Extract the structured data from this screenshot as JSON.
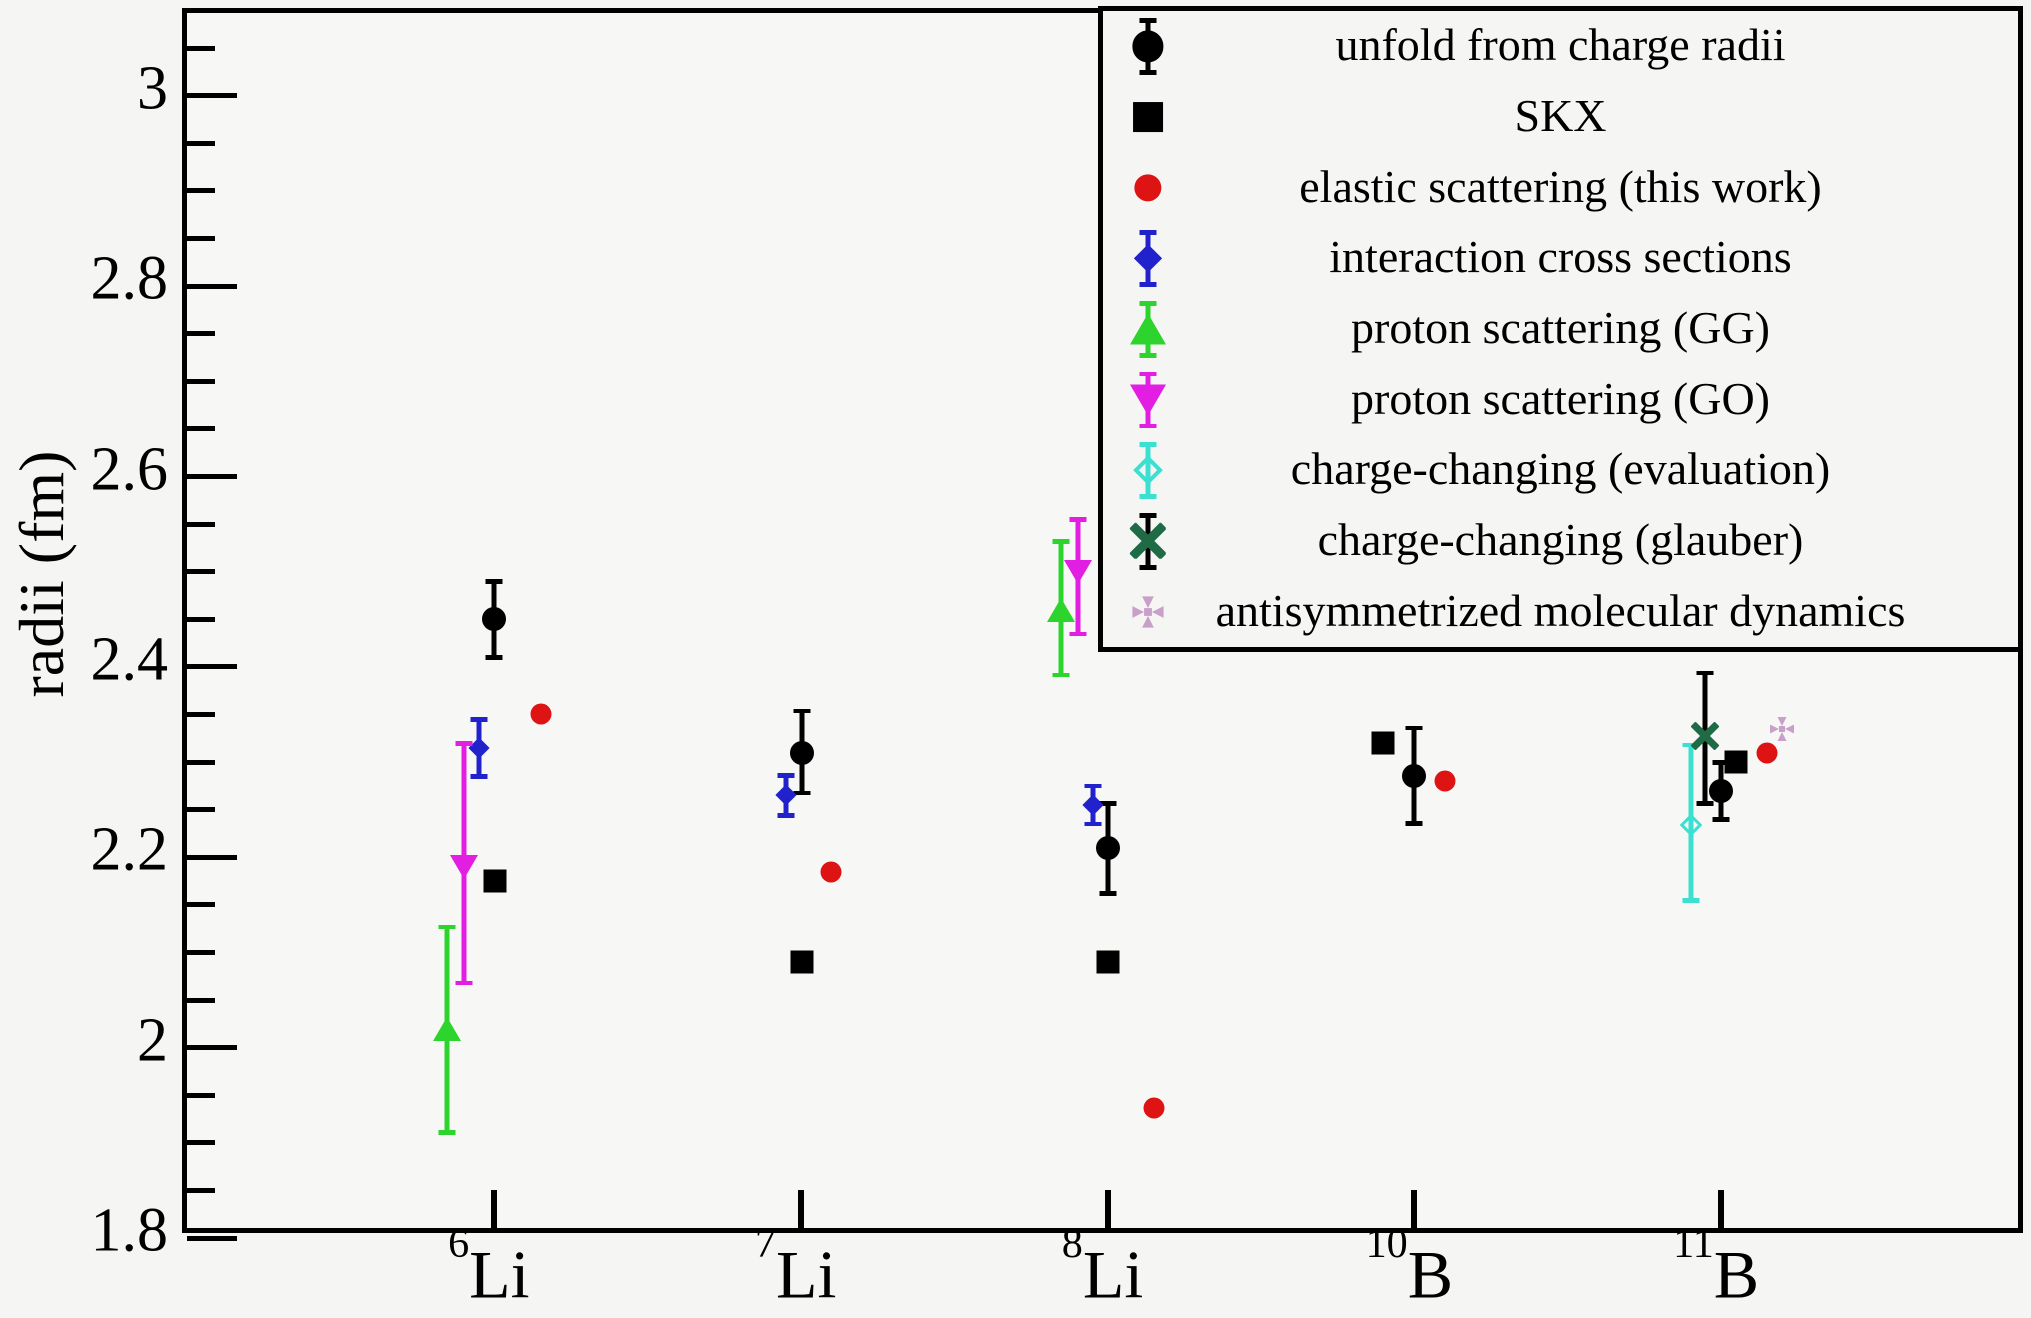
{
  "chart_data": {
    "type": "scatter",
    "title": "",
    "xlabel": "",
    "ylabel": "radii (fm)",
    "ylim": [
      1.8,
      3.087
    ],
    "grid": false,
    "legend_position": "top-right",
    "background": "#f5f5f4",
    "frame_color": "#000000",
    "yticks": [
      {
        "v": 3.0,
        "label": "3"
      },
      {
        "v": 2.8,
        "label": "2.8"
      },
      {
        "v": 2.6,
        "label": "2.6"
      },
      {
        "v": 2.4,
        "label": "2.4"
      },
      {
        "v": 2.2,
        "label": "2.2"
      },
      {
        "v": 2.0,
        "label": "2"
      },
      {
        "v": 1.8,
        "label": "1.8"
      }
    ],
    "minor_tick_step": 0.05,
    "categories": [
      {
        "mass": "6",
        "element": "Li"
      },
      {
        "mass": "7",
        "element": "Li"
      },
      {
        "mass": "8",
        "element": "Li"
      },
      {
        "mass": "10",
        "element": "B"
      },
      {
        "mass": "11",
        "element": "B"
      }
    ],
    "series": [
      {
        "name": "unfold from charge radii",
        "marker": "circle",
        "color": "#000000",
        "points": [
          {
            "cat": 0,
            "dx": 0,
            "y": 2.45,
            "ep": 0.04,
            "em": 0.04
          },
          {
            "cat": 1,
            "dx": 1,
            "y": 2.31,
            "ep": 0.044,
            "em": 0.042
          },
          {
            "cat": 2,
            "dx": 0,
            "y": 2.21,
            "ep": 0.047,
            "em": 0.048
          },
          {
            "cat": 3,
            "dx": 0,
            "y": 2.285,
            "ep": 0.051,
            "em": 0.049
          },
          {
            "cat": 4,
            "dx": 0,
            "y": 2.27,
            "ep": 0.03,
            "em": 0.03
          }
        ]
      },
      {
        "name": "SKX",
        "marker": "square",
        "color": "#000000",
        "points": [
          {
            "cat": 0,
            "dx": 1,
            "y": 2.175
          },
          {
            "cat": 1,
            "dx": 1,
            "y": 2.09
          },
          {
            "cat": 2,
            "dx": 0,
            "y": 2.09
          },
          {
            "cat": 3,
            "dx": -31,
            "y": 2.32
          },
          {
            "cat": 4,
            "dx": 15,
            "y": 2.3
          }
        ]
      },
      {
        "name": "elastic scattering (this work)",
        "marker": "dot",
        "color": "#de1414",
        "points": [
          {
            "cat": 0,
            "dx": 47,
            "y": 2.35
          },
          {
            "cat": 1,
            "dx": 30,
            "y": 2.185
          },
          {
            "cat": 2,
            "dx": 46,
            "y": 1.937
          },
          {
            "cat": 3,
            "dx": 31,
            "y": 2.28
          },
          {
            "cat": 4,
            "dx": 46,
            "y": 2.31
          }
        ]
      },
      {
        "name": "interaction cross sections",
        "marker": "diamond",
        "color": "#2222cd",
        "points": [
          {
            "cat": 0,
            "dx": -15,
            "y": 2.315,
            "ep": 0.03,
            "em": 0.03
          },
          {
            "cat": 1,
            "dx": -15,
            "y": 2.265,
            "ep": 0.021,
            "em": 0.021
          },
          {
            "cat": 2,
            "dx": -15,
            "y": 2.255,
            "ep": 0.02,
            "em": 0.02
          }
        ]
      },
      {
        "name": "proton scattering (GG)",
        "marker": "triangle-up",
        "color": "#2ed42e",
        "points": [
          {
            "cat": 0,
            "dx": -47,
            "y": 2.02,
            "ep": 0.107,
            "em": 0.109
          },
          {
            "cat": 2,
            "dx": -47,
            "y": 2.46,
            "ep": 0.072,
            "em": 0.068
          }
        ]
      },
      {
        "name": "proton scattering (GO)",
        "marker": "triangle-down",
        "color": "#e21ee2",
        "points": [
          {
            "cat": 0,
            "dx": -30,
            "y": 2.19,
            "ep": 0.13,
            "em": 0.122
          },
          {
            "cat": 2,
            "dx": -30,
            "y": 2.5,
            "ep": 0.055,
            "em": 0.065
          }
        ]
      },
      {
        "name": "charge-changing (evaluation)",
        "marker": "open-diamond",
        "color": "#3be0d1",
        "points": [
          {
            "cat": 4,
            "dx": -30,
            "y": 2.234,
            "ep": 0.084,
            "em": 0.079
          }
        ]
      },
      {
        "name": "charge-changing (glauber)",
        "marker": "cross-x",
        "color": "#1e6b45",
        "errorbar_color": "#000000",
        "points": [
          {
            "cat": 4,
            "dx": -16,
            "y": 2.327,
            "ep": 0.067,
            "em": 0.07
          }
        ]
      },
      {
        "name": "antisymmetrized molecular dynamics",
        "marker": "maltese",
        "color": "#c9a0ca",
        "points": [
          {
            "cat": 4,
            "dx": 61,
            "y": 2.335
          }
        ]
      }
    ]
  }
}
